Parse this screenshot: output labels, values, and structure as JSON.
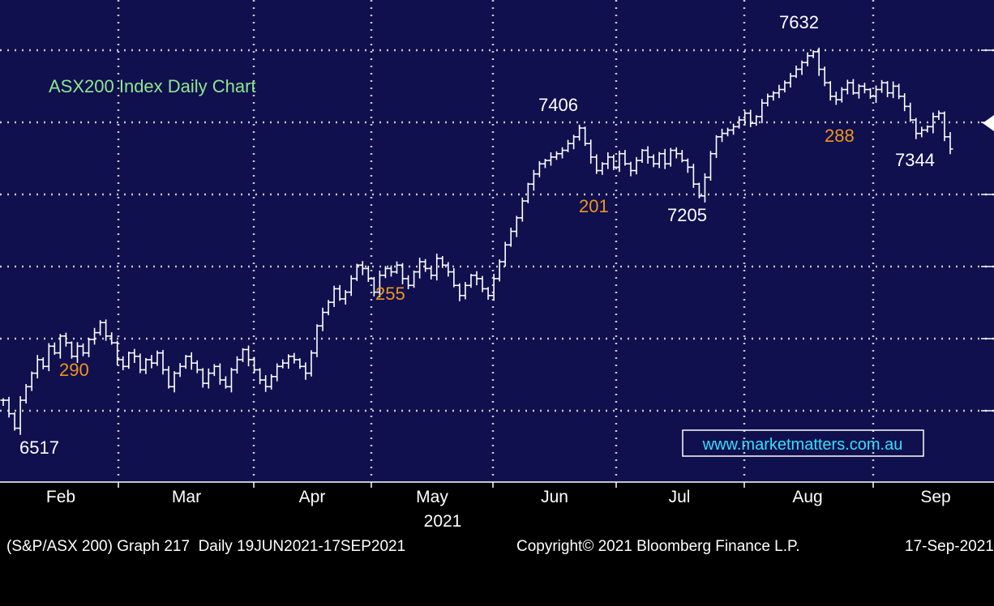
{
  "chart_data": {
    "type": "line",
    "title": "ASX200 Index Daily Chart",
    "watermark": "www.marketmatters.com.au",
    "x_tick_labels": [
      "Feb",
      "Mar",
      "Apr",
      "May",
      "Jun",
      "Jul",
      "Aug",
      "Sep"
    ],
    "year_label": "2021",
    "ylim": [
      6480,
      7670
    ],
    "series": [
      {
        "values": [
          6600,
          6560,
          6517,
          6600,
          6640,
          6680,
          6720,
          6700,
          6760,
          6740,
          6790,
          6770,
          6730,
          6760,
          6740,
          6780,
          6800,
          6830,
          6790,
          6770,
          6720,
          6700,
          6740,
          6730,
          6690,
          6720,
          6710,
          6740,
          6690,
          6640,
          6680,
          6700,
          6730,
          6710,
          6690,
          6650,
          6680,
          6700,
          6660,
          6640,
          6690,
          6720,
          6750,
          6720,
          6690,
          6660,
          6640,
          6670,
          6700,
          6710,
          6730,
          6720,
          6700,
          6680,
          6740,
          6820,
          6860,
          6890,
          6930,
          6900,
          6920,
          6960,
          7000,
          6990,
          6960,
          6920,
          6970,
          6990,
          6980,
          7000,
          6960,
          6940,
          6980,
          7010,
          6990,
          6970,
          7020,
          7000,
          6980,
          6940,
          6910,
          6940,
          6970,
          6960,
          6930,
          6910,
          6960,
          7010,
          7060,
          7100,
          7140,
          7190,
          7240,
          7270,
          7300,
          7310,
          7320,
          7330,
          7340,
          7360,
          7380,
          7406,
          7360,
          7320,
          7280,
          7300,
          7320,
          7290,
          7330,
          7300,
          7280,
          7310,
          7340,
          7320,
          7300,
          7330,
          7300,
          7340,
          7330,
          7310,
          7290,
          7240,
          7205,
          7260,
          7330,
          7380,
          7390,
          7400,
          7410,
          7430,
          7450,
          7420,
          7440,
          7480,
          7500,
          7510,
          7520,
          7540,
          7560,
          7580,
          7600,
          7620,
          7632,
          7580,
          7540,
          7500,
          7490,
          7520,
          7540,
          7510,
          7530,
          7520,
          7500,
          7520,
          7540,
          7510,
          7530,
          7500,
          7470,
          7430,
          7390,
          7400,
          7410,
          7440,
          7450,
          7380,
          7344
        ]
      }
    ],
    "annotations": [
      {
        "text": "6517",
        "color": "#ffffff"
      },
      {
        "text": "290",
        "color": "#f0941e"
      },
      {
        "text": "255",
        "color": "#f0941e"
      },
      {
        "text": "7406",
        "color": "#ffffff"
      },
      {
        "text": "201",
        "color": "#f0941e"
      },
      {
        "text": "7205",
        "color": "#ffffff"
      },
      {
        "text": "7632",
        "color": "#ffffff"
      },
      {
        "text": "288",
        "color": "#f0941e"
      },
      {
        "text": "7344",
        "color": "#ffffff"
      }
    ],
    "colors": {
      "plot_background": "#10104e",
      "grid": "#c8c8c8",
      "price": "#ffffff",
      "title": "#8ee88e",
      "watermark": "#33e0ff"
    },
    "grid": true
  },
  "footer": {
    "left": "(S&P/ASX 200) Graph 217  Daily 19JUN2021-17SEP2021",
    "center": "Copyright© 2021 Bloomberg Finance L.P.",
    "right": "17-Sep-2021"
  }
}
